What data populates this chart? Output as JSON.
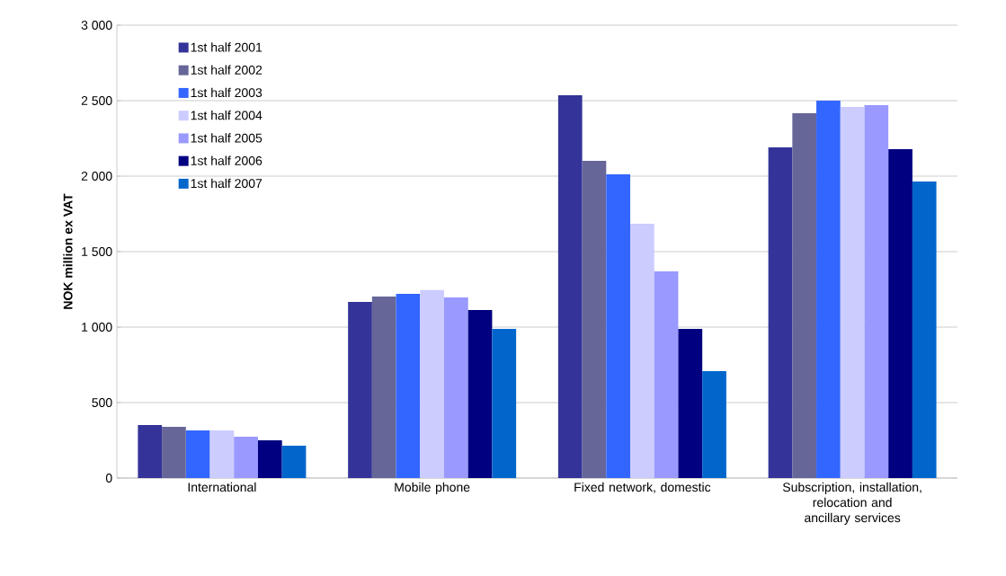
{
  "chart_data": {
    "type": "bar",
    "ylabel": "NOK million ex VAT",
    "categories": [
      "International",
      "Mobile phone",
      "Fixed network, domestic",
      "Subscription, installation, relocation and ancillary services"
    ],
    "series": [
      {
        "name": "1st half 2001",
        "color": "#333399",
        "values": [
          351,
          1167,
          2536,
          2190
        ]
      },
      {
        "name": "1st half 2002",
        "color": "#666699",
        "values": [
          339,
          1202,
          2101,
          2417
        ]
      },
      {
        "name": "1st half 2003",
        "color": "#3366ff",
        "values": [
          315,
          1220,
          2012,
          2500
        ]
      },
      {
        "name": "1st half 2004",
        "color": "#ccccff",
        "values": [
          315,
          1245,
          1685,
          2458
        ]
      },
      {
        "name": "1st half 2005",
        "color": "#9999ff",
        "values": [
          274,
          1196,
          1369,
          2470
        ]
      },
      {
        "name": "1st half 2006",
        "color": "#000080",
        "values": [
          250,
          1113,
          988,
          2179
        ]
      },
      {
        "name": "1st half 2007",
        "color": "#0066cc",
        "values": [
          214,
          988,
          708,
          1964
        ]
      }
    ],
    "ylim": [
      0,
      3000
    ],
    "yticks": [
      0,
      {
        "value": 500,
        "label": "500"
      },
      {
        "value": 1000,
        "label": "1 000"
      },
      {
        "value": 1500,
        "label": "1 500"
      },
      {
        "value": 2000,
        "label": "2 000"
      },
      {
        "value": 2500,
        "label": "2 500"
      },
      {
        "value": 3000,
        "label": "3 000"
      }
    ],
    "grid": "y",
    "legend": "top left"
  }
}
